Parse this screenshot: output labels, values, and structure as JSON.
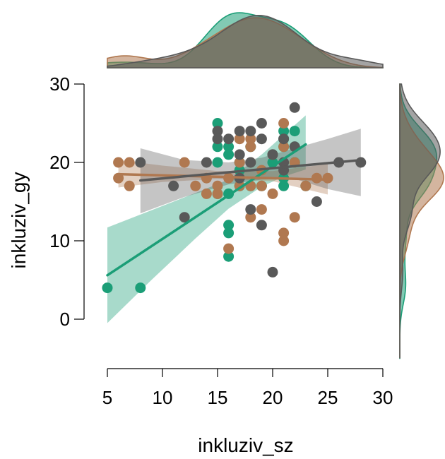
{
  "chart_data": {
    "type": "scatter",
    "xlabel": "inkluziv_sz",
    "ylabel": "inkluziv_gy",
    "xlim": [
      5,
      30
    ],
    "ylim": [
      0,
      30
    ],
    "xticks": [
      "5",
      "10",
      "15",
      "20",
      "25",
      "30"
    ],
    "yticks": [
      "0",
      "10",
      "20",
      "30"
    ],
    "marginal_plots": "density (top: x, right: y)",
    "colors": {
      "green": "#1b9e77",
      "brown": "#b07850",
      "gray": "#595959"
    },
    "series": [
      {
        "color": "#1b9e77",
        "points": [
          [
            5,
            4
          ],
          [
            8,
            4
          ],
          [
            15,
            25
          ],
          [
            15,
            22
          ],
          [
            15,
            20
          ],
          [
            15,
            16
          ],
          [
            16,
            22
          ],
          [
            16,
            21
          ],
          [
            16,
            16
          ],
          [
            16,
            12
          ],
          [
            16,
            11
          ],
          [
            16,
            8
          ],
          [
            17,
            20
          ],
          [
            17,
            19
          ],
          [
            17,
            17
          ],
          [
            18,
            22
          ],
          [
            18,
            17
          ],
          [
            19,
            17
          ],
          [
            20,
            21
          ],
          [
            20,
            20
          ],
          [
            21,
            24
          ],
          [
            21,
            23
          ],
          [
            21,
            22
          ],
          [
            21,
            18
          ],
          [
            21,
            17
          ],
          [
            22,
            22
          ],
          [
            22,
            24
          ],
          [
            22,
            20
          ],
          [
            23,
            17
          ]
        ],
        "trend": {
          "x": [
            5,
            23
          ],
          "y": [
            5.6,
            22.3
          ]
        },
        "ci": {
          "x": [
            5,
            9,
            13,
            16,
            19,
            21,
            23
          ],
          "lower": [
            -0.5,
            5.0,
            10.3,
            14.1,
            16.9,
            18.2,
            19.1
          ],
          "upper": [
            11.7,
            13.9,
            16.1,
            17.8,
            21.0,
            23.5,
            26.0
          ]
        }
      },
      {
        "color": "#b07850",
        "points": [
          [
            6,
            20
          ],
          [
            6,
            18
          ],
          [
            7,
            20
          ],
          [
            7,
            17
          ],
          [
            12,
            20
          ],
          [
            13,
            17
          ],
          [
            14,
            18
          ],
          [
            14,
            16
          ],
          [
            15,
            17
          ],
          [
            15,
            16
          ],
          [
            16,
            18
          ],
          [
            16,
            9
          ],
          [
            17,
            23
          ],
          [
            17,
            20
          ],
          [
            17,
            17
          ],
          [
            18,
            23
          ],
          [
            18,
            22
          ],
          [
            18,
            20
          ],
          [
            18,
            17
          ],
          [
            18,
            13
          ],
          [
            19,
            19
          ],
          [
            19,
            17
          ],
          [
            19,
            14
          ],
          [
            20,
            21
          ],
          [
            20,
            16
          ],
          [
            21,
            25
          ],
          [
            21,
            22
          ],
          [
            21,
            11
          ],
          [
            21,
            10
          ],
          [
            22,
            20
          ],
          [
            22,
            13
          ],
          [
            23,
            17
          ],
          [
            24,
            18
          ],
          [
            25,
            18
          ]
        ],
        "trend": {
          "x": [
            6,
            25
          ],
          "y": [
            18.5,
            17.8
          ]
        },
        "ci": {
          "x": [
            6,
            10,
            15,
            20,
            25
          ],
          "lower": [
            16.8,
            17.5,
            17.9,
            17.6,
            15.9
          ],
          "upper": [
            20.3,
            19.6,
            18.9,
            18.9,
            19.8
          ]
        }
      },
      {
        "color": "#595959",
        "points": [
          [
            8,
            20
          ],
          [
            11,
            17
          ],
          [
            12,
            13
          ],
          [
            14,
            20
          ],
          [
            15,
            24
          ],
          [
            15,
            23
          ],
          [
            16,
            23
          ],
          [
            17,
            24
          ],
          [
            17,
            21
          ],
          [
            17,
            18
          ],
          [
            18,
            24
          ],
          [
            18,
            20
          ],
          [
            18,
            14
          ],
          [
            19,
            25
          ],
          [
            19,
            23
          ],
          [
            19,
            12
          ],
          [
            20,
            6
          ],
          [
            20,
            21
          ],
          [
            21,
            23
          ],
          [
            21,
            20
          ],
          [
            21,
            19
          ],
          [
            22,
            27
          ],
          [
            22,
            22
          ],
          [
            24,
            15
          ],
          [
            26,
            20
          ],
          [
            28,
            20
          ]
        ],
        "trend": {
          "x": [
            8,
            28
          ],
          "y": [
            17.7,
            20.3
          ]
        },
        "ci": {
          "x": [
            8,
            12,
            16,
            19,
            22,
            25,
            28
          ],
          "lower": [
            13.5,
            15.6,
            17.2,
            17.8,
            17.9,
            16.6,
            15.7
          ],
          "upper": [
            21.8,
            20.3,
            20.0,
            20.6,
            21.8,
            23.0,
            24.3
          ]
        }
      }
    ]
  }
}
